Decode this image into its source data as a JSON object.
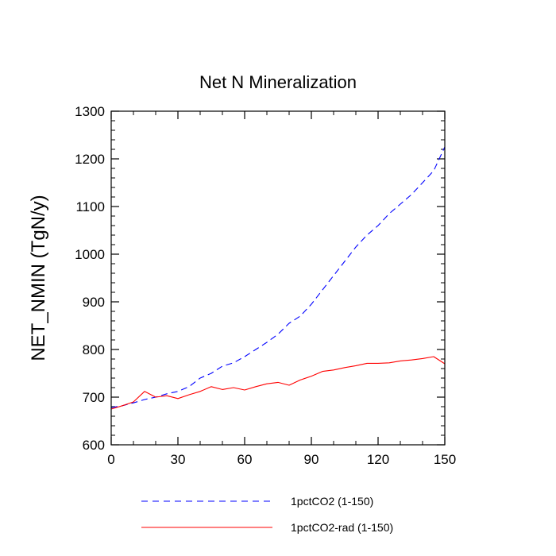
{
  "chart_data": {
    "type": "line",
    "title": "Net N Mineralization",
    "xlabel": "",
    "ylabel": "NET_NMIN  (TgN/y)",
    "xlim": [
      0,
      150
    ],
    "ylim": [
      600,
      1300
    ],
    "x_ticks": [
      0,
      30,
      60,
      90,
      120,
      150
    ],
    "y_ticks": [
      600,
      700,
      800,
      900,
      1000,
      1100,
      1200,
      1300
    ],
    "grid": false,
    "legend_position": "bottom",
    "x": [
      0,
      5,
      10,
      15,
      20,
      25,
      30,
      35,
      40,
      45,
      50,
      55,
      60,
      65,
      70,
      75,
      80,
      85,
      90,
      95,
      100,
      105,
      110,
      115,
      120,
      125,
      130,
      135,
      140,
      145,
      150
    ],
    "series": [
      {
        "name": "1pctCO2 (1-150)",
        "color": "#0000ff",
        "dash": "dashed",
        "values": [
          678,
          682,
          688,
          695,
          700,
          707,
          712,
          722,
          740,
          750,
          765,
          772,
          785,
          800,
          815,
          832,
          855,
          870,
          895,
          925,
          955,
          985,
          1015,
          1040,
          1060,
          1085,
          1105,
          1125,
          1150,
          1175,
          1225
        ]
      },
      {
        "name": "1pctCO2-rad (1-150)",
        "color": "#ff0000",
        "dash": "solid",
        "values": [
          675,
          682,
          690,
          712,
          700,
          703,
          697,
          705,
          712,
          722,
          716,
          720,
          715,
          722,
          728,
          731,
          725,
          736,
          744,
          754,
          757,
          762,
          766,
          771,
          771,
          772,
          776,
          778,
          781,
          785,
          770
        ]
      }
    ]
  }
}
